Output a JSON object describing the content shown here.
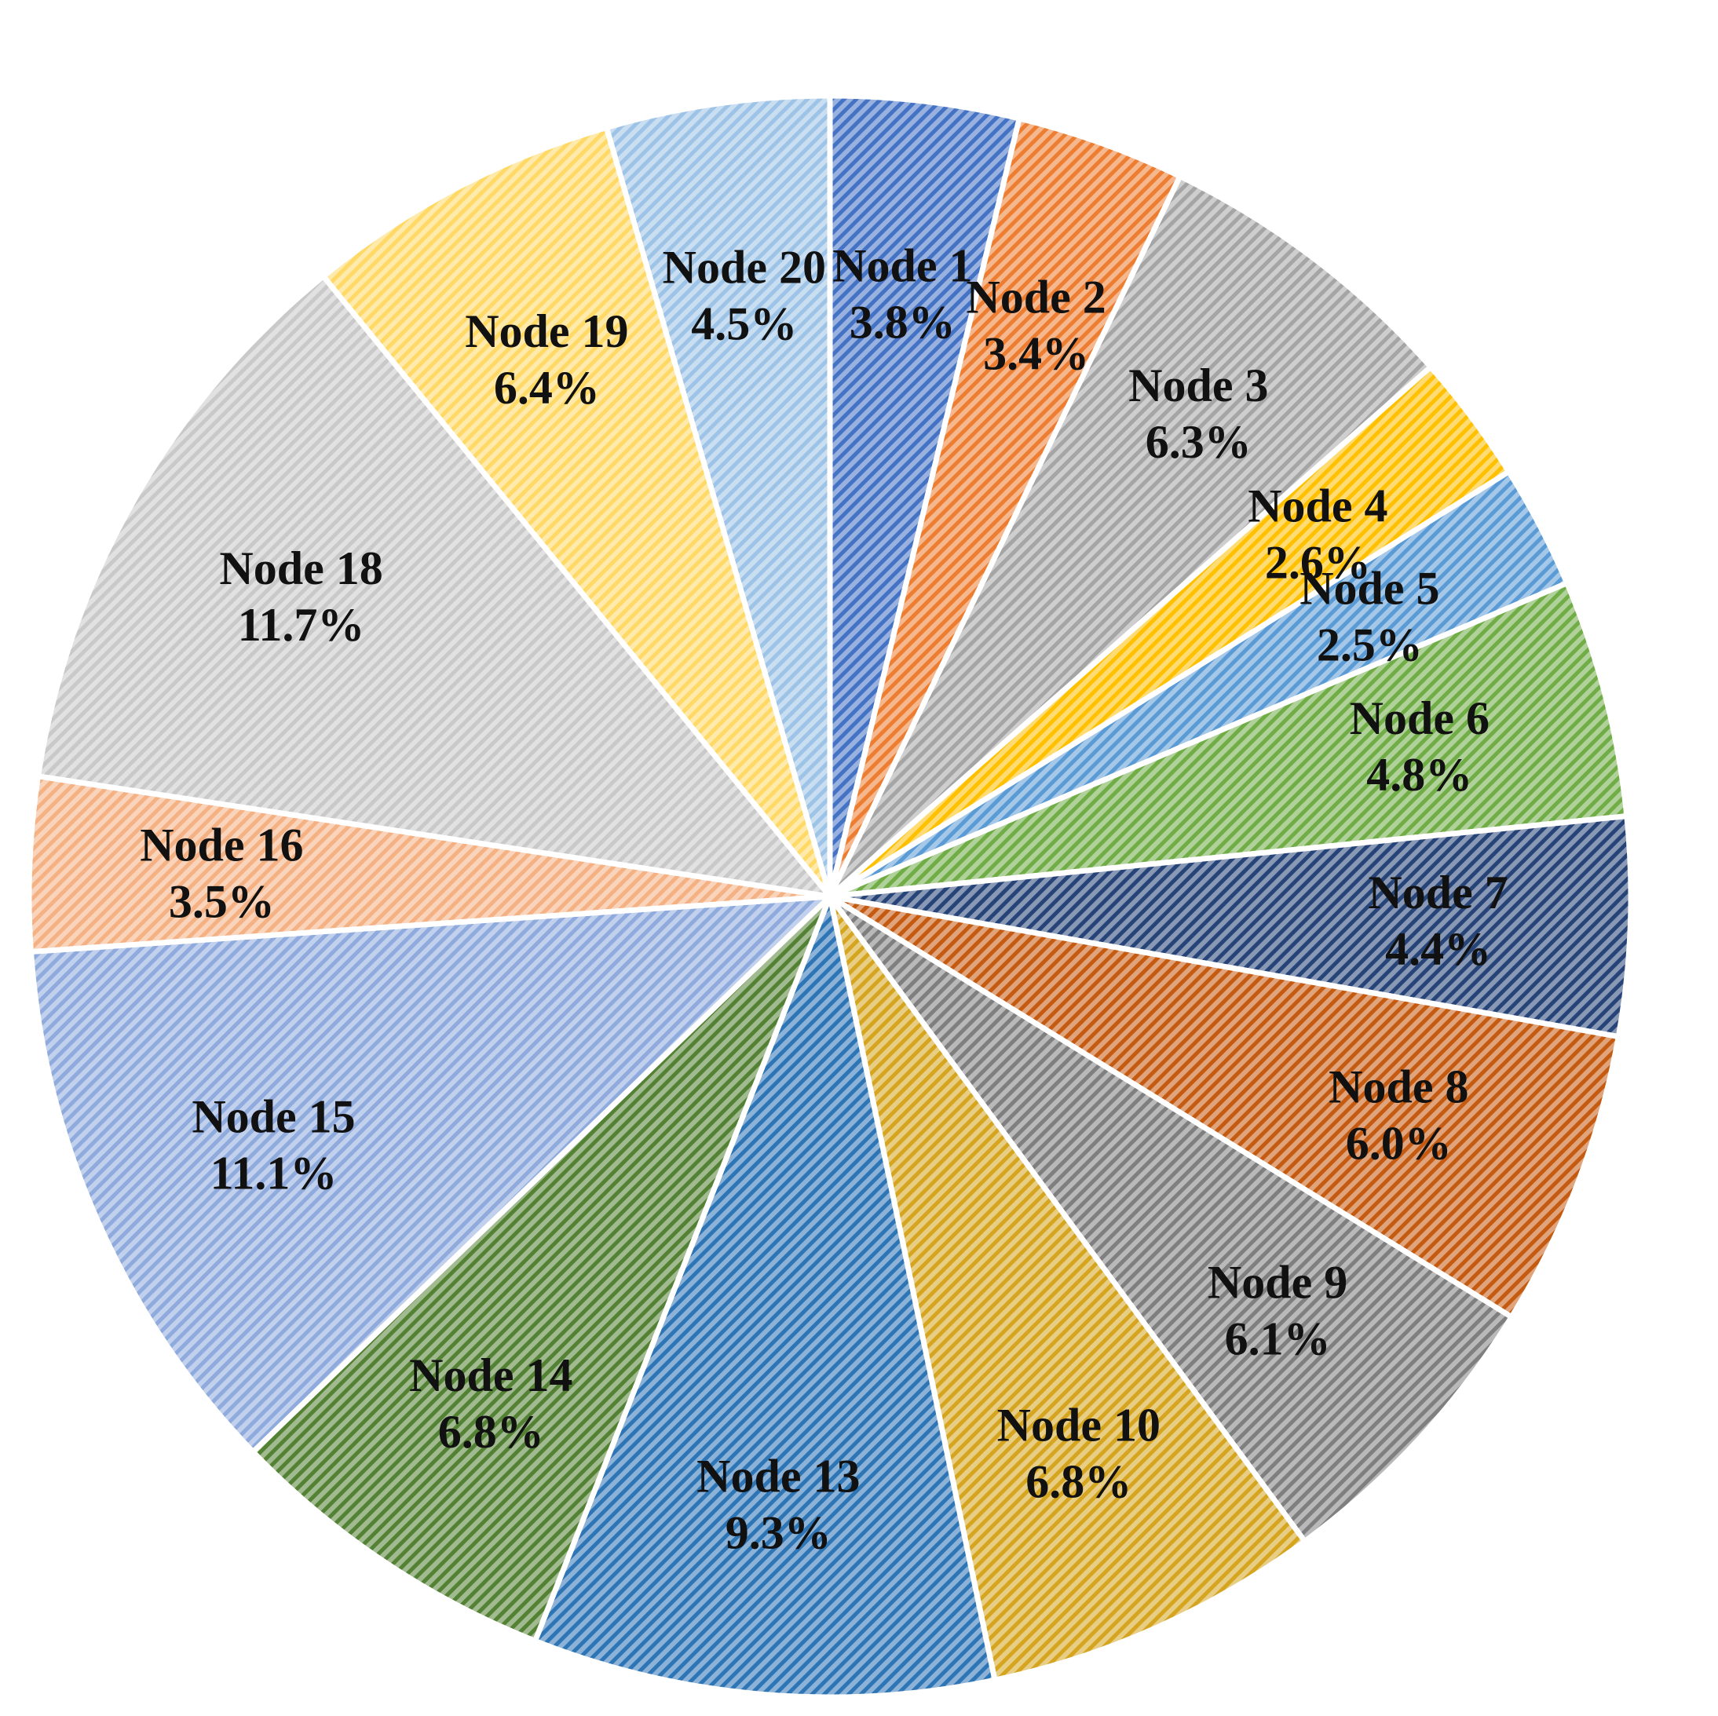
{
  "chart_data": {
    "type": "pie",
    "title": "",
    "start_angle_deg": 0,
    "direction": "clockwise",
    "fill_pattern": "diagonal-hatch",
    "slices": [
      {
        "label": "Node 1",
        "pct": "3.8%",
        "value": 3.8,
        "color": "#4472C4"
      },
      {
        "label": "Node 2",
        "pct": "3.4%",
        "value": 3.4,
        "color": "#ED7D31"
      },
      {
        "label": "Node 3",
        "pct": "6.3%",
        "value": 6.3,
        "color": "#A5A5A5"
      },
      {
        "label": "Node 4",
        "pct": "2.6%",
        "value": 2.6,
        "color": "#FFC000"
      },
      {
        "label": "Node 5",
        "pct": "2.5%",
        "value": 2.5,
        "color": "#5B9BD5"
      },
      {
        "label": "Node 6",
        "pct": "4.8%",
        "value": 4.8,
        "color": "#70AD47"
      },
      {
        "label": "Node 7",
        "pct": "4.4%",
        "value": 4.4,
        "color": "#264478"
      },
      {
        "label": "Node 8",
        "pct": "6.0%",
        "value": 6.0,
        "color": "#C55A11"
      },
      {
        "label": "Node 9",
        "pct": "6.1%",
        "value": 6.1,
        "color": "#7F7F7F"
      },
      {
        "label": "Node 10",
        "pct": "6.8%",
        "value": 6.8,
        "color": "#D6A520"
      },
      {
        "label": "Node 13",
        "pct": "9.3%",
        "value": 9.3,
        "color": "#2E75B6"
      },
      {
        "label": "Node 14",
        "pct": "6.8%",
        "value": 6.8,
        "color": "#548235"
      },
      {
        "label": "Node 15",
        "pct": "11.1%",
        "value": 11.1,
        "color": "#8FAADC"
      },
      {
        "label": "Node 16",
        "pct": "3.5%",
        "value": 3.5,
        "color": "#F4B183"
      },
      {
        "label": "Node 18",
        "pct": "11.7%",
        "value": 11.7,
        "color": "#C9C9C9"
      },
      {
        "label": "Node 19",
        "pct": "6.4%",
        "value": 6.4,
        "color": "#FFD966"
      },
      {
        "label": "Node 20",
        "pct": "4.5%",
        "value": 4.5,
        "color": "#9DC3E6"
      }
    ]
  }
}
